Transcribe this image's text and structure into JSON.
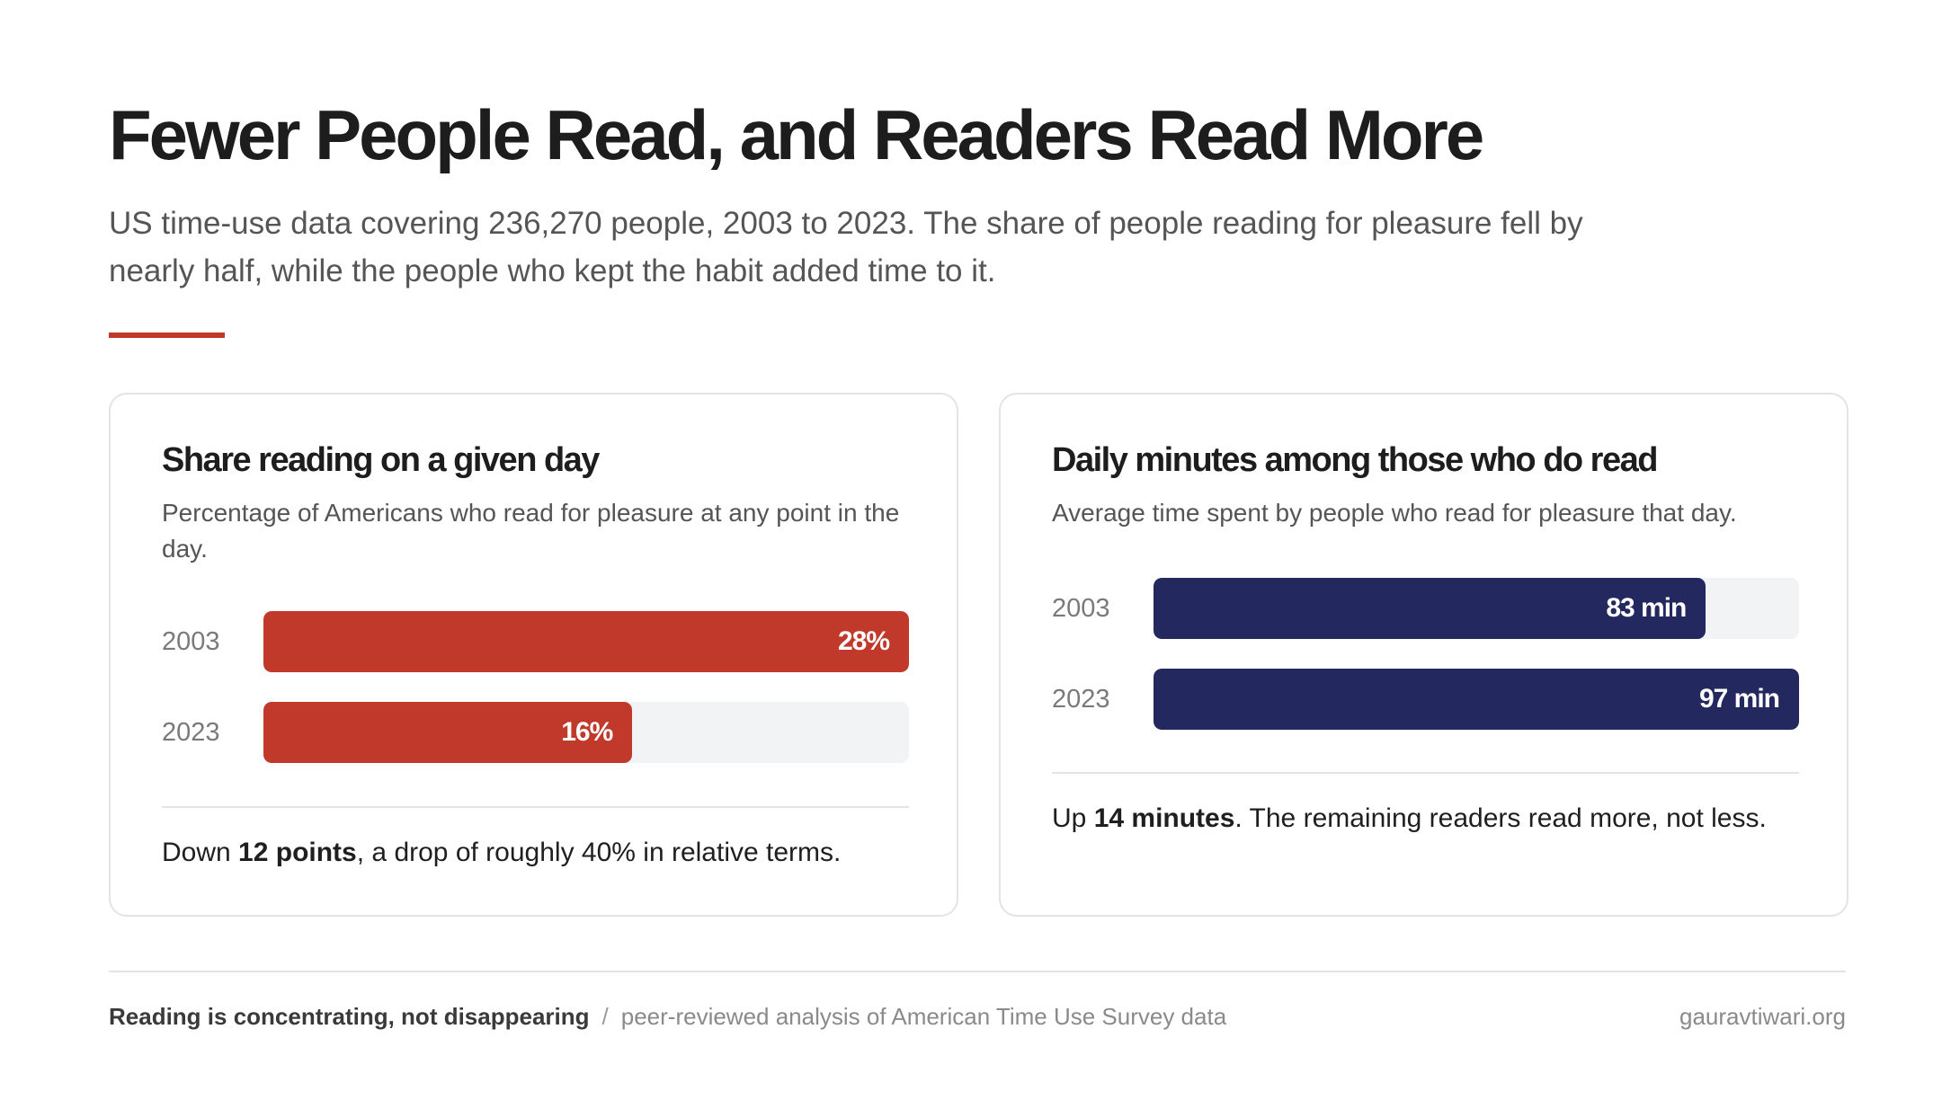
{
  "header": {
    "title": "Fewer People Read, and Readers Read More",
    "subtitle": "US time-use data covering 236,270 people, 2003 to 2023. The share of people reading for pleasure fell by nearly half, while the people who kept the habit added time to it."
  },
  "colors": {
    "accent": "#c0392b",
    "share_bar": "#c0392b",
    "minutes_bar": "#23295e",
    "track": "#f2f3f5"
  },
  "chart_data": [
    {
      "type": "bar",
      "orientation": "horizontal",
      "title": "Share reading on a given day",
      "subtitle": "Percentage of Americans who read for pleasure at any point in the day.",
      "categories": [
        "2003",
        "2023"
      ],
      "values": [
        28,
        16
      ],
      "value_labels": [
        "28%",
        "16%"
      ],
      "xlim": [
        0,
        28
      ],
      "color": "#c0392b",
      "note": {
        "prefix": "Down ",
        "emphasis": "12 points",
        "suffix": ", a drop of roughly 40% in relative terms."
      }
    },
    {
      "type": "bar",
      "orientation": "horizontal",
      "title": "Daily minutes among those who do read",
      "subtitle": "Average time spent by people who read for pleasure that day.",
      "categories": [
        "2003",
        "2023"
      ],
      "values": [
        83,
        97
      ],
      "value_labels": [
        "83 min",
        "97 min"
      ],
      "xlim": [
        0,
        97
      ],
      "color": "#23295e",
      "note": {
        "prefix": "Up ",
        "emphasis": "14 minutes",
        "suffix": ". The remaining readers read more, not less."
      }
    }
  ],
  "footer": {
    "title": "Reading is concentrating, not disappearing",
    "separator": "/",
    "description": "peer-reviewed analysis of American Time Use Survey data",
    "site": "gauravtiwari.org"
  }
}
